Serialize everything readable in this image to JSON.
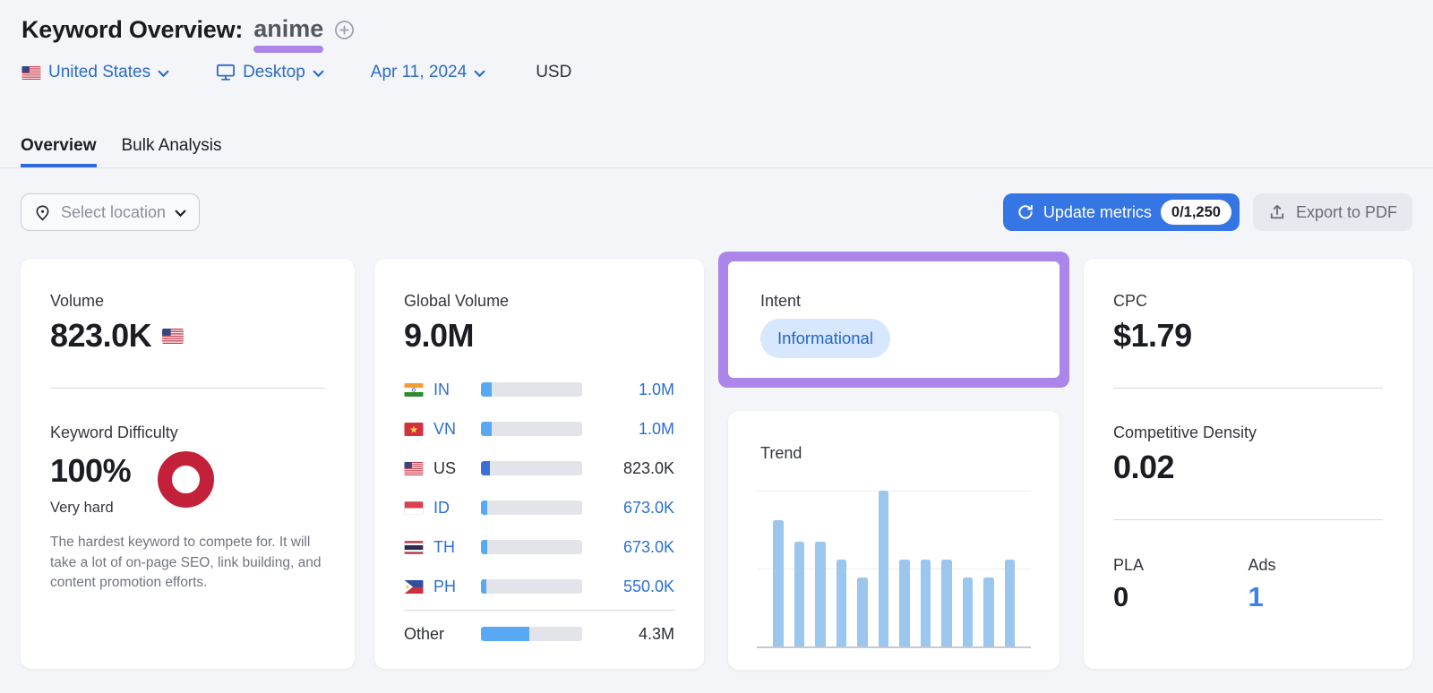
{
  "header": {
    "title": "Keyword Overview:",
    "keyword": "anime",
    "filters": {
      "location": "United States",
      "device": "Desktop",
      "date": "Apr 11, 2024",
      "currency": "USD"
    }
  },
  "tabs": [
    {
      "label": "Overview",
      "active": true
    },
    {
      "label": "Bulk Analysis",
      "active": false
    }
  ],
  "toolbar": {
    "select_location": "Select location",
    "update_metrics": "Update metrics",
    "update_metrics_count": "0/1,250",
    "export_pdf": "Export to PDF"
  },
  "cards": {
    "volume": {
      "label": "Volume",
      "value": "823.0K",
      "flag": "us"
    },
    "keyword_difficulty": {
      "label": "Keyword Difficulty",
      "value": "100%",
      "rating": "Very hard",
      "description": "The hardest keyword to compete for. It will take a lot of on-page SEO, link building, and content promotion efforts.",
      "donut_color": "#c32139",
      "percent": 100
    },
    "global_volume": {
      "label": "Global Volume",
      "value": "9.0M",
      "rows": [
        {
          "code": "IN",
          "flag": "in",
          "value": "1.0M",
          "share": 0.11,
          "link": true,
          "fill": "#58a9f3"
        },
        {
          "code": "VN",
          "flag": "vn",
          "value": "1.0M",
          "share": 0.11,
          "link": true,
          "fill": "#58a9f3"
        },
        {
          "code": "US",
          "flag": "us",
          "value": "823.0K",
          "share": 0.085,
          "link": false,
          "fill": "#3a6fd8"
        },
        {
          "code": "ID",
          "flag": "id",
          "value": "673.0K",
          "share": 0.06,
          "link": true,
          "fill": "#58a9f3"
        },
        {
          "code": "TH",
          "flag": "th",
          "value": "673.0K",
          "share": 0.06,
          "link": true,
          "fill": "#58a9f3"
        },
        {
          "code": "PH",
          "flag": "ph",
          "value": "550.0K",
          "share": 0.05,
          "link": true,
          "fill": "#58a9f3"
        }
      ],
      "other": {
        "label": "Other",
        "value": "4.3M",
        "share": 0.48,
        "fill": "#58a9f3"
      }
    },
    "intent": {
      "label": "Intent",
      "badge": "Informational",
      "badge_bg": "#d7e7fd",
      "badge_color": "#2567c6",
      "highlight_color": "#ab85ea"
    },
    "trend": {
      "label": "Trend",
      "bar_color": "#9bc6ee"
    },
    "cpc": {
      "label": "CPC",
      "value": "$1.79"
    },
    "competitive_density": {
      "label": "Competitive Density",
      "value": "0.02"
    },
    "pla": {
      "label": "PLA",
      "value": "0"
    },
    "ads": {
      "label": "Ads",
      "value": "1",
      "color": "#3b82ef"
    }
  },
  "chart_data": [
    {
      "type": "bar",
      "title": "Trend",
      "description": "Monthly search trend, 12 bars, no axis tick labels shown",
      "categories": [
        "1",
        "2",
        "3",
        "4",
        "5",
        "6",
        "7",
        "8",
        "9",
        "10",
        "11",
        "12"
      ],
      "values": [
        0.81,
        0.67,
        0.67,
        0.56,
        0.44,
        1.0,
        0.56,
        0.56,
        0.56,
        0.44,
        0.44,
        0.56
      ],
      "ylim": [
        0,
        1
      ],
      "gridlines": [
        0.5,
        1.0
      ],
      "legend": false,
      "bar_color": "#9bc6ee"
    },
    {
      "type": "bar",
      "title": "Global Volume by country",
      "categories": [
        "IN",
        "VN",
        "US",
        "ID",
        "TH",
        "PH",
        "Other"
      ],
      "values_labels": [
        "1.0M",
        "1.0M",
        "823.0K",
        "673.0K",
        "673.0K",
        "550.0K",
        "4.3M"
      ],
      "values": [
        1000000,
        1000000,
        823000,
        673000,
        673000,
        550000,
        4300000
      ],
      "total_label": "9.0M"
    }
  ],
  "colors": {
    "accent_blue": "#3576e4",
    "link_blue": "#2b6cc4",
    "purple_highlight": "#ab85ea",
    "difficulty_red": "#c32139",
    "trend_bar": "#9bc6ee",
    "page_bg": "#f4f5f9"
  }
}
